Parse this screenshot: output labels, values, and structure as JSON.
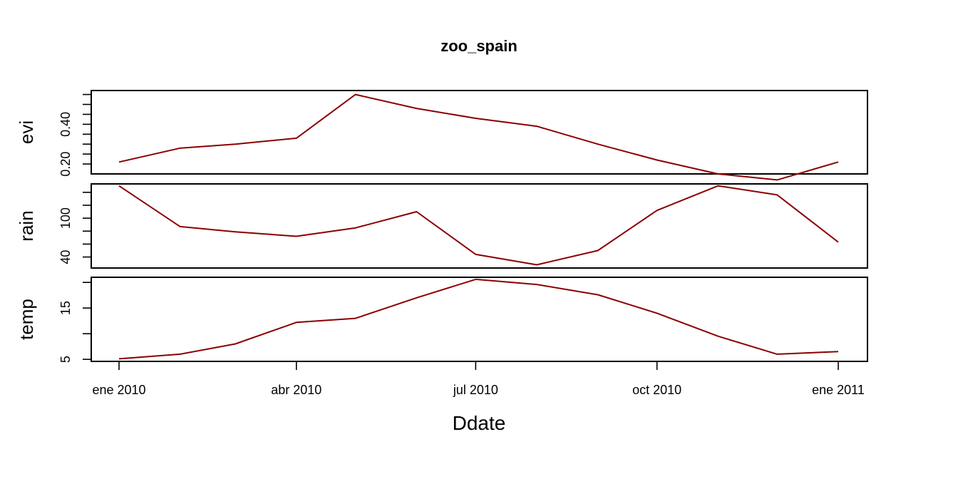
{
  "chart_data": {
    "type": "line",
    "title": "zoo_spain",
    "xlabel": "Ddate",
    "x": [
      "2010-01-01",
      "2010-02-01",
      "2010-03-01",
      "2010-04-01",
      "2010-05-01",
      "2010-06-01",
      "2010-07-01",
      "2010-08-01",
      "2010-09-01",
      "2010-10-01",
      "2010-11-01",
      "2010-12-01",
      "2011-01-01"
    ],
    "x_ticks": [
      {
        "date": "2010-01-01",
        "label": "ene 2010"
      },
      {
        "date": "2010-04-01",
        "label": "abr 2010"
      },
      {
        "date": "2010-07-01",
        "label": "jul 2010"
      },
      {
        "date": "2010-10-01",
        "label": "oct 2010"
      },
      {
        "date": "2011-01-01",
        "label": "ene 2011"
      }
    ],
    "line_color": "#8B0000",
    "grid": false,
    "series": [
      {
        "name": "evi",
        "values": [
          0.21,
          0.28,
          0.3,
          0.33,
          0.55,
          0.48,
          0.43,
          0.39,
          0.3,
          0.22,
          0.15,
          0.12,
          0.21
        ],
        "ylim": [
          0.15,
          0.57
        ],
        "y_ticks": [
          0.2,
          0.4
        ],
        "minor_ticks": [
          0.2,
          0.25,
          0.3,
          0.35,
          0.4,
          0.45,
          0.5,
          0.55
        ],
        "y_tick_labels": [
          "0.20",
          "0.40"
        ]
      },
      {
        "name": "rain",
        "values": [
          150,
          87,
          79,
          72,
          85,
          110,
          44,
          28,
          50,
          112,
          150,
          136,
          63
        ],
        "ylim": [
          23,
          153
        ],
        "y_ticks": [
          40,
          100
        ],
        "minor_ticks": [
          40,
          60,
          80,
          100,
          120,
          140
        ],
        "y_tick_labels": [
          "40",
          "100"
        ]
      },
      {
        "name": "temp",
        "values": [
          5.1,
          6.0,
          8.0,
          12.2,
          13.0,
          17.0,
          20.6,
          19.6,
          17.6,
          14.0,
          9.5,
          6.0,
          6.5
        ],
        "ylim": [
          4.6,
          21.0
        ],
        "y_ticks": [
          5,
          15
        ],
        "minor_ticks": [
          5,
          10,
          15,
          20
        ],
        "y_tick_labels": [
          "5",
          "15"
        ]
      }
    ]
  }
}
